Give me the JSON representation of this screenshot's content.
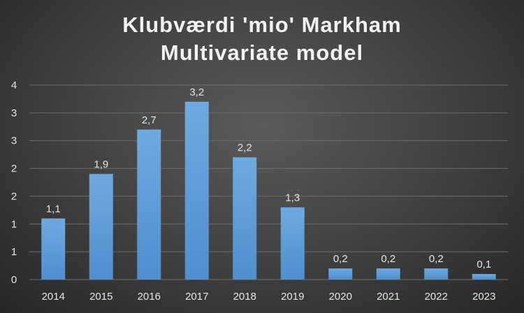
{
  "chart_data": {
    "type": "bar",
    "title_line1": "Klubværdi 'mio' Markham",
    "title_line2": "Multivariate model",
    "categories": [
      "2014",
      "2015",
      "2016",
      "2017",
      "2018",
      "2019",
      "2020",
      "2021",
      "2022",
      "2023"
    ],
    "values": [
      1.1,
      1.9,
      2.7,
      3.2,
      2.2,
      1.3,
      0.2,
      0.2,
      0.2,
      0.1
    ],
    "data_labels": [
      "1,1",
      "1,9",
      "2,7",
      "3,2",
      "2,2",
      "1,3",
      "0,2",
      "0,2",
      "0,2",
      "0,1"
    ],
    "ytick_labels": [
      "0",
      "1",
      "1",
      "2",
      "2",
      "3",
      "3",
      "4"
    ],
    "ylim": [
      0,
      3.5
    ],
    "grid": true,
    "colors": {
      "bar": "#5b9bd5",
      "bar_light": "#6fa9e0",
      "grid": "#6e6e6e",
      "text": "#e6e6e6"
    }
  }
}
